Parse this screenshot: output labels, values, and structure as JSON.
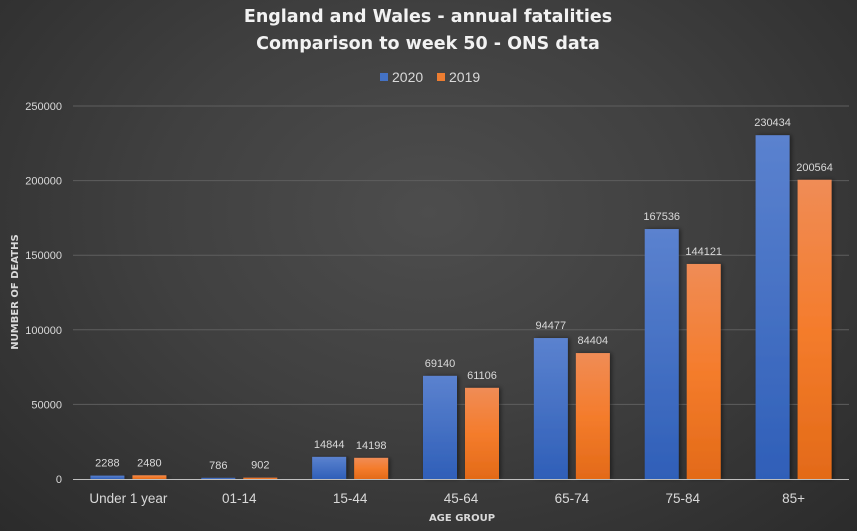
{
  "chart_data": {
    "type": "bar",
    "title_lines": [
      "England and Wales - annual fatalities",
      "Comparison to week 50 - ONS data"
    ],
    "xlabel": "AGE GROUP",
    "ylabel": "NUMBER OF DEATHS",
    "categories": [
      "Under 1 year",
      "01-14",
      "15-44",
      "45-64",
      "65-74",
      "75-84",
      "85+"
    ],
    "series": [
      {
        "name": "2020",
        "color": "#4472c4",
        "values": [
          2288,
          786,
          14844,
          69140,
          94477,
          167536,
          230434
        ]
      },
      {
        "name": "2019",
        "color": "#ed7d31",
        "values": [
          2480,
          902,
          14198,
          61106,
          84404,
          144121,
          200564
        ]
      }
    ],
    "ylim": [
      0,
      250000
    ],
    "yticks": [
      0,
      50000,
      100000,
      150000,
      200000,
      250000
    ],
    "grid": true,
    "legend": "top-center",
    "data_labels": true
  }
}
